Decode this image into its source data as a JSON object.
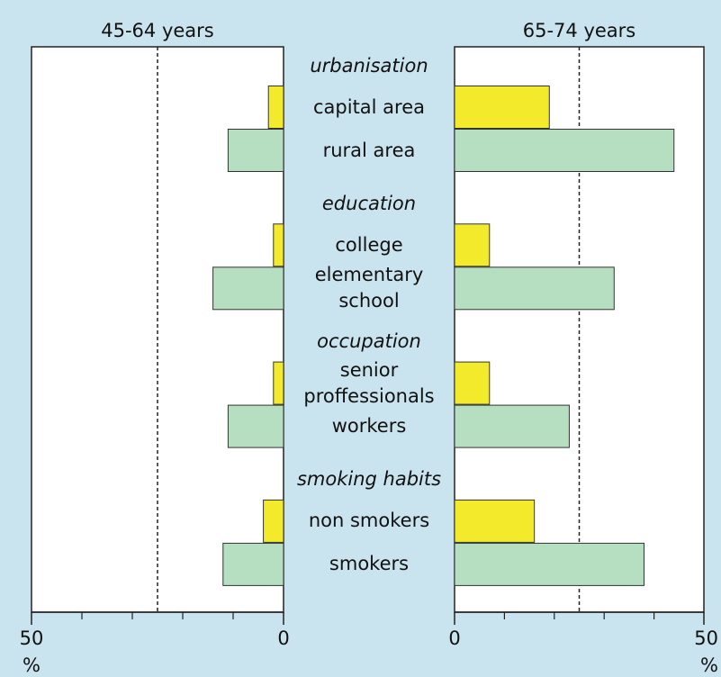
{
  "chart_data": {
    "type": "bar",
    "category_groups": [
      {
        "name": "urbanisation",
        "categories": [
          "capital area",
          "rural area"
        ]
      },
      {
        "name": "education",
        "categories": [
          "college",
          "elementary school"
        ]
      },
      {
        "name": "occupation",
        "categories": [
          "senior proffessionals",
          "workers"
        ]
      },
      {
        "name": "smoking habits",
        "categories": [
          "non smokers",
          "smokers"
        ]
      }
    ],
    "panels": [
      {
        "title": "45-64 years",
        "xlim": [
          50,
          0
        ],
        "xticks": [
          50,
          0
        ],
        "minor_xticks": [
          40,
          30,
          20,
          10
        ],
        "xlabel": "%",
        "reference_line": 25,
        "series": [
          {
            "color": "#f4ea2c",
            "values": [
              [
                3,
                null
              ],
              [
                2,
                null
              ],
              [
                2,
                null
              ],
              [
                4,
                null
              ]
            ]
          },
          {
            "color": "#b5dfc0",
            "values": [
              [
                null,
                11
              ],
              [
                null,
                14
              ],
              [
                null,
                11
              ],
              [
                null,
                12
              ]
            ]
          }
        ]
      },
      {
        "title": "65-74 years",
        "xlim": [
          0,
          50
        ],
        "xticks": [
          0,
          50
        ],
        "minor_xticks": [
          10,
          20,
          30,
          40
        ],
        "xlabel": "%",
        "reference_line": 25,
        "series": [
          {
            "color": "#f4ea2c",
            "values": [
              [
                19,
                null
              ],
              [
                7,
                null
              ],
              [
                7,
                null
              ],
              [
                16,
                null
              ]
            ]
          },
          {
            "color": "#b5dfc0",
            "values": [
              [
                null,
                44
              ],
              [
                null,
                32
              ],
              [
                null,
                23
              ],
              [
                null,
                38
              ]
            ]
          }
        ]
      }
    ]
  }
}
